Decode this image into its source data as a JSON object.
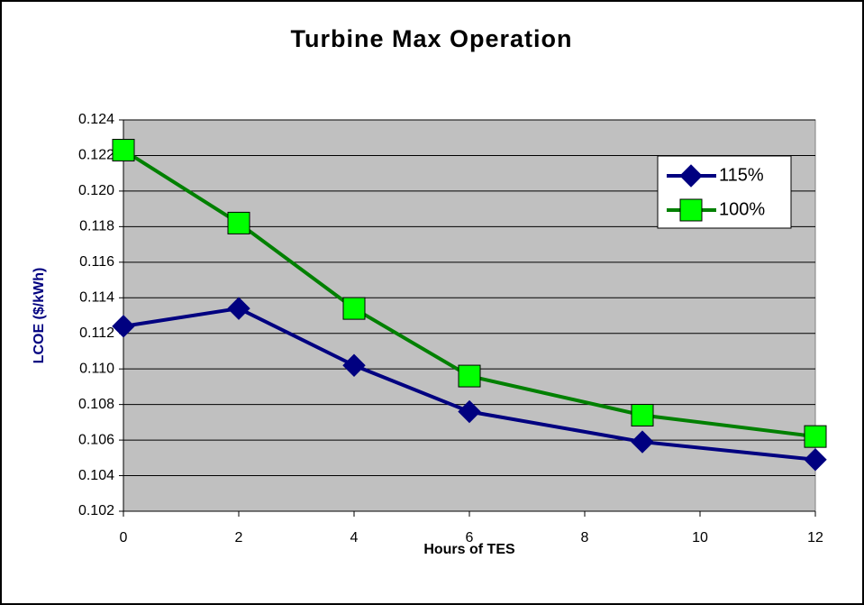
{
  "chart_data": {
    "type": "line",
    "title": "Turbine Max Operation",
    "x_label": "Hours of TES",
    "y_label": "LCOE ($/kWh)",
    "x": [
      0,
      2,
      4,
      6,
      9,
      12
    ],
    "series": [
      {
        "name": "115%",
        "color": "#000080",
        "marker": "diamond",
        "values": [
          0.1124,
          0.1134,
          0.1102,
          0.1076,
          0.1059,
          0.1049
        ]
      },
      {
        "name": "100%",
        "color": "#008000",
        "marker_color": "#00ff00",
        "marker": "square",
        "values": [
          0.1223,
          0.1182,
          0.1134,
          0.1096,
          0.1074,
          0.1062
        ]
      }
    ],
    "xlim": [
      0,
      12
    ],
    "xticks": [
      0,
      2,
      4,
      6,
      8,
      10,
      12
    ],
    "ylim": [
      0.102,
      0.124
    ],
    "yticks": [
      0.102,
      0.104,
      0.106,
      0.108,
      {
        "value": 0.11,
        "label": "0.110"
      },
      0.112,
      0.114,
      0.116,
      0.118,
      {
        "value": 0.12,
        "label": "0.120"
      },
      0.122,
      0.124
    ],
    "grid": true,
    "legend": "upper right"
  }
}
